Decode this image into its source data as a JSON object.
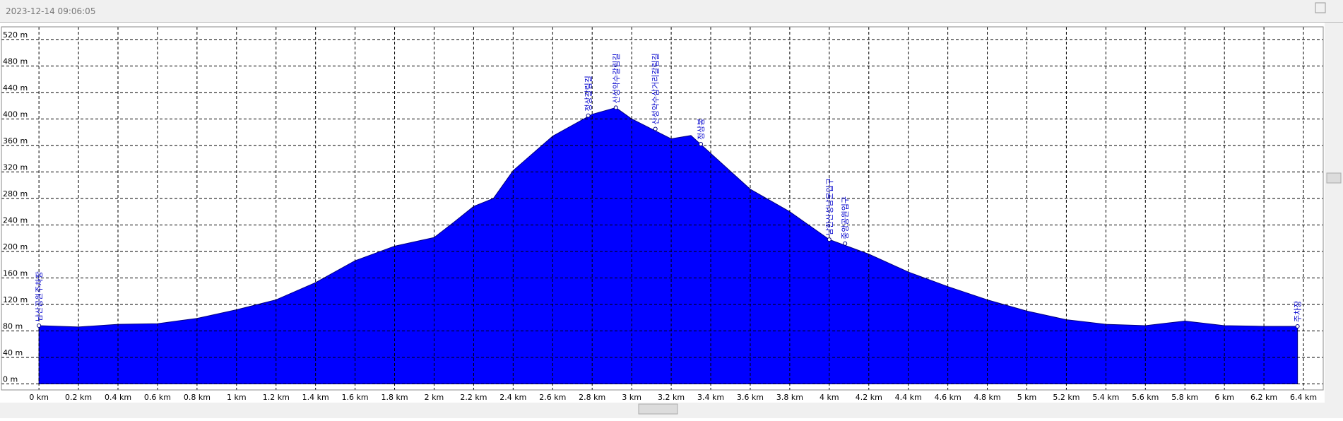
{
  "window_title": "2023-12-14 09:06:05",
  "chart_data": {
    "type": "area",
    "color": "#0000ff",
    "grid": true,
    "x": [
      0,
      0.2,
      0.4,
      0.6,
      0.8,
      1.0,
      1.2,
      1.4,
      1.6,
      1.8,
      2.0,
      2.1,
      2.2,
      2.3,
      2.4,
      2.6,
      2.8,
      2.92,
      3.0,
      3.2,
      3.3,
      3.4,
      3.6,
      3.8,
      4.0,
      4.2,
      4.4,
      4.6,
      4.8,
      5.0,
      5.2,
      5.4,
      5.6,
      5.8,
      6.0,
      6.2,
      6.37
    ],
    "values": [
      88,
      86,
      90,
      91,
      99,
      112,
      127,
      153,
      186,
      208,
      221,
      244,
      268,
      280,
      322,
      374,
      407,
      417,
      400,
      370,
      375,
      348,
      294,
      260,
      218,
      196,
      169,
      147,
      127,
      110,
      97,
      90,
      88,
      95,
      88,
      87,
      87
    ],
    "xlim": [
      -0.19,
      6.5
    ],
    "ylim": [
      -9,
      539
    ],
    "xticks": [
      {
        "value": 0,
        "label": "0 km"
      },
      {
        "value": 0.2,
        "label": "0.2 km"
      },
      {
        "value": 0.4,
        "label": "0.4 km"
      },
      {
        "value": 0.6,
        "label": "0.6 km"
      },
      {
        "value": 0.8,
        "label": "0.8 km"
      },
      {
        "value": 1,
        "label": "1 km"
      },
      {
        "value": 1.2,
        "label": "1.2 km"
      },
      {
        "value": 1.4,
        "label": "1.4 km"
      },
      {
        "value": 1.6,
        "label": "1.6 km"
      },
      {
        "value": 1.8,
        "label": "1.8 km"
      },
      {
        "value": 2,
        "label": "2 km"
      },
      {
        "value": 2.2,
        "label": "2.2 km"
      },
      {
        "value": 2.4,
        "label": "2.4 km"
      },
      {
        "value": 2.6,
        "label": "2.6 km"
      },
      {
        "value": 2.8,
        "label": "2.8 km"
      },
      {
        "value": 3,
        "label": "3 km"
      },
      {
        "value": 3.2,
        "label": "3.2 km"
      },
      {
        "value": 3.4,
        "label": "3.4 km"
      },
      {
        "value": 3.6,
        "label": "3.6 km"
      },
      {
        "value": 3.8,
        "label": "3.8 km"
      },
      {
        "value": 4,
        "label": "4 km"
      },
      {
        "value": 4.2,
        "label": "4.2 km"
      },
      {
        "value": 4.4,
        "label": "4.4 km"
      },
      {
        "value": 4.6,
        "label": "4.6 km"
      },
      {
        "value": 4.8,
        "label": "4.8 km"
      },
      {
        "value": 5,
        "label": "5 km"
      },
      {
        "value": 5.2,
        "label": "5.2 km"
      },
      {
        "value": 5.4,
        "label": "5.4 km"
      },
      {
        "value": 5.6,
        "label": "5.6 km"
      },
      {
        "value": 5.8,
        "label": "5.8 km"
      },
      {
        "value": 6,
        "label": "6 km"
      },
      {
        "value": 6.2,
        "label": "6.2 km"
      },
      {
        "value": 6.4,
        "label": "6.4 km"
      }
    ],
    "yticks": [
      {
        "value": 0,
        "label": "0 m"
      },
      {
        "value": 40,
        "label": "40 m"
      },
      {
        "value": 80,
        "label": "80 m"
      },
      {
        "value": 120,
        "label": "120 m"
      },
      {
        "value": 160,
        "label": "160 m"
      },
      {
        "value": 200,
        "label": "200 m"
      },
      {
        "value": 240,
        "label": "240 m"
      },
      {
        "value": 280,
        "label": "280 m"
      },
      {
        "value": 320,
        "label": "320 m"
      },
      {
        "value": 360,
        "label": "360 m"
      },
      {
        "value": 400,
        "label": "400 m"
      },
      {
        "value": 440,
        "label": "440 m"
      },
      {
        "value": 480,
        "label": "480 m"
      },
      {
        "value": 520,
        "label": "520 m"
      }
    ],
    "annotations": [
      {
        "text": "남산공원주차장",
        "x": 0,
        "y": 88
      },
      {
        "text": "정상갈림길",
        "x": 2.78,
        "y": 405
      },
      {
        "text": "산성약수갈림길",
        "x": 2.92,
        "y": 417
      },
      {
        "text": "산성약수삼거리갈림길",
        "x": 3.12,
        "y": 385
      },
      {
        "text": "정상봉",
        "x": 3.35,
        "y": 362
      },
      {
        "text": "남한산성남문입구",
        "x": 4.0,
        "y": 218
      },
      {
        "text": "중앙공원입구",
        "x": 4.08,
        "y": 212
      },
      {
        "text": "주차장",
        "x": 6.37,
        "y": 87
      }
    ]
  }
}
